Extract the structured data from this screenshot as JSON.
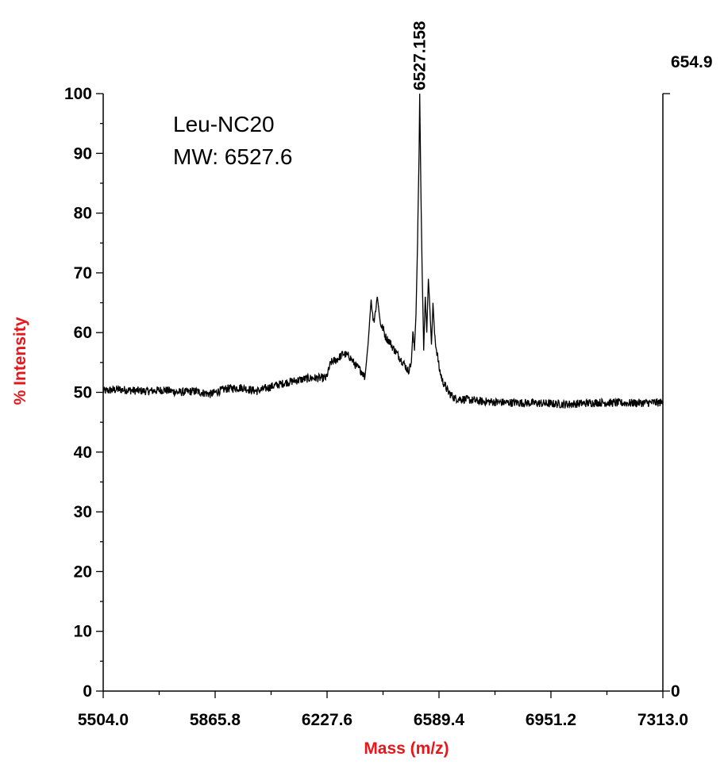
{
  "chart_data": {
    "type": "line",
    "xlabel": "Mass (m/z)",
    "ylabel": "% Intensity",
    "xlim": [
      5504.0,
      7313.0
    ],
    "ylim": [
      0,
      100
    ],
    "x_ticks": [
      "5504.0",
      "5865.8",
      "6227.6",
      "6589.4",
      "6951.2",
      "7313.0"
    ],
    "y_ticks": [
      "0",
      "10",
      "20",
      "30",
      "40",
      "50",
      "60",
      "70",
      "80",
      "90",
      "100"
    ],
    "right_axis": {
      "top_label": "654.9",
      "bottom_label": "0"
    },
    "annotations": [
      "Leu-NC20",
      "MW:  6527.6"
    ],
    "peak_label": {
      "text": "6527.158",
      "x": 6527.158,
      "y": 100
    },
    "grid": false,
    "legend": "none",
    "color": "#000000",
    "series": [
      {
        "x": [
          5504,
          5550,
          5600,
          5650,
          5700,
          5750,
          5800,
          5850,
          5900,
          5950,
          6000,
          6050,
          6100,
          6150,
          6180,
          6200,
          6225,
          6240,
          6260,
          6280,
          6300,
          6320,
          6340,
          6350,
          6360,
          6370,
          6375,
          6380,
          6390,
          6400,
          6410,
          6415,
          6420,
          6430,
          6440,
          6460,
          6480,
          6490,
          6500,
          6505,
          6510,
          6515,
          6520,
          6525,
          6527,
          6530,
          6535,
          6540,
          6545,
          6550,
          6555,
          6560,
          6565,
          6570,
          6575,
          6580,
          6585,
          6590,
          6600,
          6620,
          6640,
          6680,
          6720,
          6800,
          6900,
          7000,
          7100,
          7200,
          7313
        ],
        "y": [
          50.2,
          50.5,
          50.3,
          50.2,
          50.4,
          50.0,
          50.2,
          49.7,
          50.6,
          50.8,
          50.2,
          51.0,
          51.7,
          52.2,
          52.4,
          52.4,
          52.4,
          55.0,
          55.5,
          56.5,
          56.0,
          54.5,
          53.5,
          52.5,
          58.0,
          65.5,
          63.0,
          62.0,
          66.0,
          61.5,
          60.5,
          59.5,
          59.0,
          58.5,
          57.5,
          56.0,
          54.5,
          53.5,
          55.0,
          60.0,
          57.0,
          63.0,
          75.0,
          90.0,
          100.0,
          87.0,
          70.0,
          57.0,
          66.0,
          60.0,
          69.0,
          64.0,
          58.0,
          65.0,
          60.0,
          57.5,
          56.0,
          54.0,
          52.0,
          50.0,
          49.0,
          48.8,
          48.5,
          48.3,
          48.2,
          48.0,
          48.3,
          48.2,
          48.3
        ]
      }
    ]
  }
}
